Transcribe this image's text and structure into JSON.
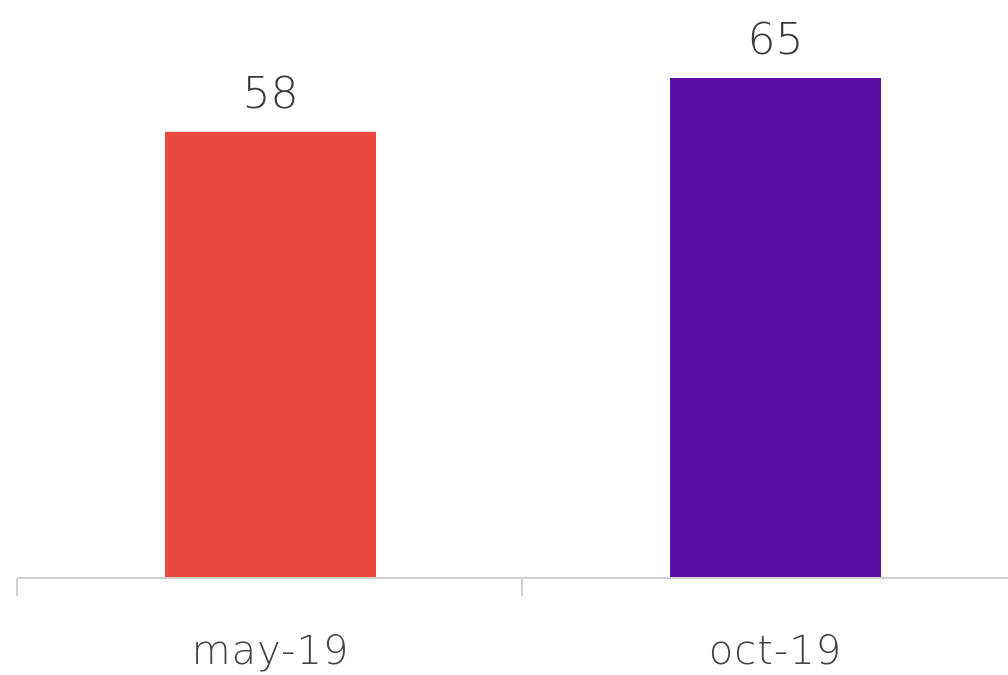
{
  "chart_data": {
    "type": "bar",
    "categories": [
      "may-19",
      "oct-19"
    ],
    "values": [
      58,
      65
    ],
    "data_labels": [
      "58",
      "65"
    ],
    "colors": [
      "#E84A40",
      "#5A10A3"
    ],
    "ylim": [
      0,
      65
    ],
    "grid": false,
    "legend": "none",
    "axis_color": "#d0d0d0"
  }
}
